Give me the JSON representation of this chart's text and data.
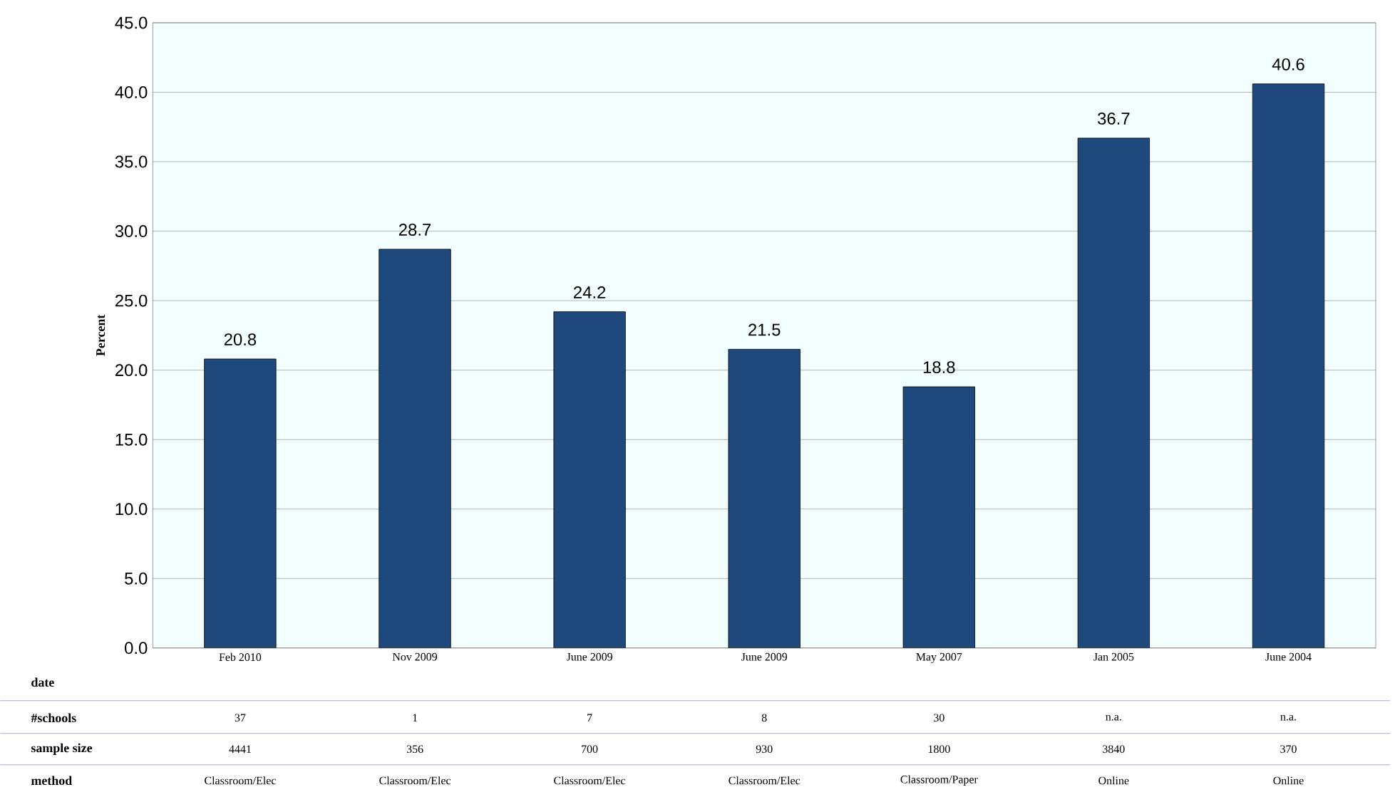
{
  "chart_data": {
    "type": "bar",
    "ylabel": "Percent",
    "categories": [
      "Feb 2010",
      "Nov 2009",
      "June 2009",
      "June 2009",
      "May 2007",
      "Jan 2005",
      "June 2004"
    ],
    "values": [
      20.8,
      28.7,
      24.2,
      21.5,
      18.8,
      36.7,
      40.6
    ],
    "value_labels": [
      "20.8",
      "28.7",
      "24.2",
      "21.5",
      "18.8",
      "36.7",
      "40.6"
    ],
    "color": "#1f497d",
    "ylim": [
      0,
      45
    ],
    "yticks": [
      {
        "value": 0,
        "label": "0.0"
      },
      {
        "value": 5,
        "label": "5.0"
      },
      {
        "value": 10,
        "label": "10.0"
      },
      {
        "value": 15,
        "label": "15.0"
      },
      {
        "value": 20,
        "label": "20.0"
      },
      {
        "value": 25,
        "label": "25.0"
      },
      {
        "value": 30,
        "label": "30.0"
      },
      {
        "value": 35,
        "label": "35.0"
      },
      {
        "value": 40,
        "label": "40.0"
      },
      {
        "value": 45,
        "label": "45.0"
      }
    ],
    "grid": "y",
    "annotations": [
      "date",
      "#schools",
      "sample size",
      "method",
      "37",
      "1",
      "7",
      "8",
      "30",
      "n.a.",
      "n.a.",
      "4441",
      "356",
      "700",
      "930",
      "1800",
      "3840",
      "370",
      "Classroom/Elec",
      "Classroom/Elec",
      "Classroom/Elec",
      "Classroom/Elec",
      "Classroom/Paper",
      "Online",
      "Online"
    ]
  }
}
